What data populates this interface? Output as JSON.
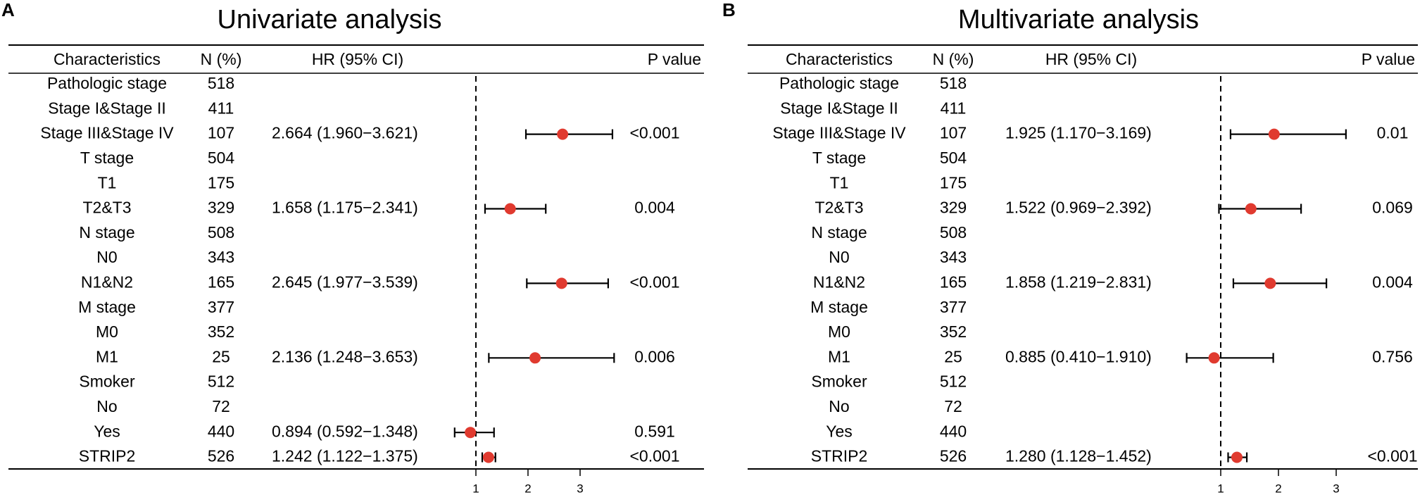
{
  "chart_data": [
    {
      "type": "forest",
      "panel_label": "A",
      "title": "Univariate analysis",
      "columns": {
        "characteristics": "Characteristics",
        "n": "N (%)",
        "hr": "HR (95% CI)",
        "p": "P value"
      },
      "reference_line": 1,
      "xticks": [
        "1",
        "2",
        "3"
      ],
      "rows": [
        {
          "label": "Pathologic stage",
          "n": "518"
        },
        {
          "label": "Stage I&Stage II",
          "n": "411"
        },
        {
          "label": "Stage III&Stage IV",
          "n": "107",
          "hr_text": "2.664 (1.960−3.621)",
          "p": "<0.001",
          "hr": 2.664,
          "lo": 1.96,
          "hi": 3.621
        },
        {
          "label": "T stage",
          "n": "504"
        },
        {
          "label": "T1",
          "n": "175"
        },
        {
          "label": "T2&T3",
          "n": "329",
          "hr_text": "1.658 (1.175−2.341)",
          "p": "0.004",
          "hr": 1.658,
          "lo": 1.175,
          "hi": 2.341
        },
        {
          "label": "N stage",
          "n": "508"
        },
        {
          "label": "N0",
          "n": "343"
        },
        {
          "label": "N1&N2",
          "n": "165",
          "hr_text": "2.645 (1.977−3.539)",
          "p": "<0.001",
          "hr": 2.645,
          "lo": 1.977,
          "hi": 3.539
        },
        {
          "label": "M stage",
          "n": "377"
        },
        {
          "label": "M0",
          "n": "352"
        },
        {
          "label": "M1",
          "n": "25",
          "hr_text": "2.136 (1.248−3.653)",
          "p": "0.006",
          "hr": 2.136,
          "lo": 1.248,
          "hi": 3.653
        },
        {
          "label": "Smoker",
          "n": "512"
        },
        {
          "label": "No",
          "n": "72"
        },
        {
          "label": "Yes",
          "n": "440",
          "hr_text": "0.894 (0.592−1.348)",
          "p": "0.591",
          "hr": 0.894,
          "lo": 0.592,
          "hi": 1.348
        },
        {
          "label": "STRIP2",
          "n": "526",
          "hr_text": "1.242 (1.122−1.375)",
          "p": "<0.001",
          "hr": 1.242,
          "lo": 1.122,
          "hi": 1.375
        }
      ]
    },
    {
      "type": "forest",
      "panel_label": "B",
      "title": "Multivariate analysis",
      "columns": {
        "characteristics": "Characteristics",
        "n": "N (%)",
        "hr": "HR (95% CI)",
        "p": "P value"
      },
      "reference_line": 1,
      "xticks": [
        "1",
        "2",
        "3"
      ],
      "rows": [
        {
          "label": "Pathologic stage",
          "n": "518"
        },
        {
          "label": "Stage I&Stage II",
          "n": "411"
        },
        {
          "label": "Stage III&Stage IV",
          "n": "107",
          "hr_text": "1.925 (1.170−3.169)",
          "p": "0.01",
          "hr": 1.925,
          "lo": 1.17,
          "hi": 3.169
        },
        {
          "label": "T stage",
          "n": "504"
        },
        {
          "label": "T1",
          "n": "175"
        },
        {
          "label": "T2&T3",
          "n": "329",
          "hr_text": "1.522 (0.969−2.392)",
          "p": "0.069",
          "hr": 1.522,
          "lo": 0.969,
          "hi": 2.392
        },
        {
          "label": "N stage",
          "n": "508"
        },
        {
          "label": "N0",
          "n": "343"
        },
        {
          "label": "N1&N2",
          "n": "165",
          "hr_text": "1.858 (1.219−2.831)",
          "p": "0.004",
          "hr": 1.858,
          "lo": 1.219,
          "hi": 2.831
        },
        {
          "label": "M stage",
          "n": "377"
        },
        {
          "label": "M0",
          "n": "352"
        },
        {
          "label": "M1",
          "n": "25",
          "hr_text": "0.885 (0.410−1.910)",
          "p": "0.756",
          "hr": 0.885,
          "lo": 0.41,
          "hi": 1.91
        },
        {
          "label": "Smoker",
          "n": "512"
        },
        {
          "label": "No",
          "n": "72"
        },
        {
          "label": "Yes",
          "n": "440"
        },
        {
          "label": "STRIP2",
          "n": "526",
          "hr_text": "1.280 (1.128−1.452)",
          "p": "<0.001",
          "hr": 1.28,
          "lo": 1.128,
          "hi": 1.452
        }
      ]
    }
  ],
  "colors": {
    "point": "#e03a2f",
    "line": "#000000"
  }
}
